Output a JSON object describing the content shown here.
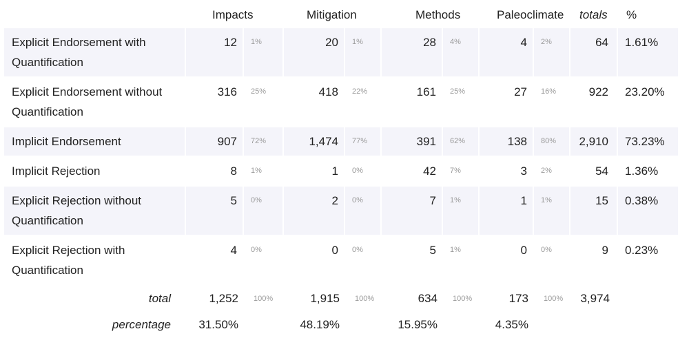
{
  "chart_data": {
    "type": "table",
    "columns": [
      "Impacts",
      "Mitigation",
      "Methods",
      "Paleoclimate"
    ],
    "totals_header": "totals",
    "percent_header": "%",
    "rows": [
      {
        "label": "Explicit Endorsement with Quantification",
        "values": [
          12,
          20,
          28,
          4
        ],
        "display": [
          "12",
          "20",
          "28",
          "4"
        ],
        "col_pcts": [
          "1%",
          "1%",
          "4%",
          "2%"
        ],
        "total": "64",
        "pct": "1.61%"
      },
      {
        "label": "Explicit Endorsement without Quantification",
        "values": [
          316,
          418,
          161,
          27
        ],
        "display": [
          "316",
          "418",
          "161",
          "27"
        ],
        "col_pcts": [
          "25%",
          "22%",
          "25%",
          "16%"
        ],
        "total": "922",
        "pct": "23.20%"
      },
      {
        "label": "Implicit Endorsement",
        "values": [
          907,
          1474,
          391,
          138
        ],
        "display": [
          "907",
          "1,474",
          "391",
          "138"
        ],
        "col_pcts": [
          "72%",
          "77%",
          "62%",
          "80%"
        ],
        "total": "2,910",
        "pct": "73.23%"
      },
      {
        "label": "Implicit Rejection",
        "values": [
          8,
          1,
          42,
          3
        ],
        "display": [
          "8",
          "1",
          "42",
          "3"
        ],
        "col_pcts": [
          "1%",
          "0%",
          "7%",
          "2%"
        ],
        "total": "54",
        "pct": "1.36%"
      },
      {
        "label": "Explicit Rejection without Quantification",
        "values": [
          5,
          2,
          7,
          1
        ],
        "display": [
          "5",
          "2",
          "7",
          "1"
        ],
        "col_pcts": [
          "0%",
          "0%",
          "1%",
          "1%"
        ],
        "total": "15",
        "pct": "0.38%"
      },
      {
        "label": "Explicit Rejection with Quantification",
        "values": [
          4,
          0,
          5,
          0
        ],
        "display": [
          "4",
          "0",
          "5",
          "0"
        ],
        "col_pcts": [
          "0%",
          "0%",
          "1%",
          "0%"
        ],
        "total": "9",
        "pct": "0.23%"
      }
    ],
    "total_row": {
      "label": "total",
      "values": [
        "1,252",
        "1,915",
        "634",
        "173"
      ],
      "col_pcts": [
        "100%",
        "100%",
        "100%",
        "100%"
      ],
      "total": "3,974"
    },
    "percentage_row": {
      "label": "percentage",
      "values": [
        "31.50%",
        "48.19%",
        "15.95%",
        "4.35%"
      ]
    },
    "row_shading": [
      "#f4f4fa",
      "#ffffff"
    ]
  }
}
